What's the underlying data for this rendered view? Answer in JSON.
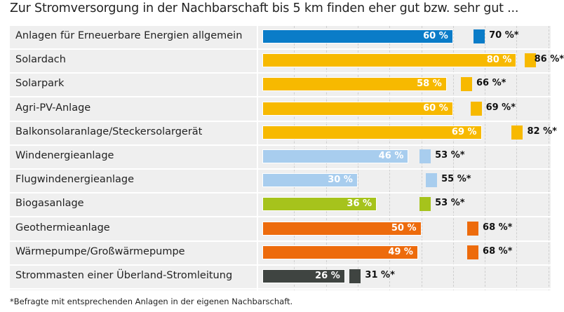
{
  "title": "Zur Stromversorgung in der Nachbarschaft bis 5 km finden eher gut bzw. sehr gut ...",
  "footnote": "*Befragte mit entsprechenden Anlagen in der eigenen Nachbarschaft.",
  "chart_data": {
    "type": "bar",
    "orientation": "horizontal",
    "xlim": [
      0,
      100
    ],
    "grid": true,
    "categories": [
      "Anlagen für Erneuerbare Energien allgemein",
      "Solardach",
      "Solarpark",
      "Agri-PV-Anlage",
      "Balkonsolaranlage/Steckersolargerät",
      "Windenergieanlage",
      "Flugwindenergieanlage",
      "Biogasanlage",
      "Geothermieanlage",
      "Wärmepumpe/Großwärmepumpe",
      "Strommasten einer Überland-Stromleitung"
    ],
    "series": [
      {
        "values": [
          60,
          80,
          58,
          60,
          69,
          46,
          30,
          36,
          50,
          49,
          26
        ],
        "labels": [
          "60 %",
          "80 %",
          "58 %",
          "60 %",
          "69 %",
          "46 %",
          "30 %",
          "36 %",
          "50 %",
          "49 %",
          "26 %"
        ]
      },
      {
        "values": [
          70,
          86,
          66,
          69,
          82,
          53,
          55,
          53,
          68,
          68,
          31
        ],
        "labels": [
          "70 %*",
          "86 %*",
          "66 %*",
          "69 %*",
          "82 %*",
          "53 %*",
          "55 %*",
          "53 %*",
          "68 %*",
          "68 %*",
          "31 %*"
        ]
      }
    ],
    "colors": [
      "#0a7cc8",
      "#f7b900",
      "#f7b900",
      "#f7b900",
      "#f7b900",
      "#a8cdee",
      "#a8cdee",
      "#a6c31c",
      "#ed6b0c",
      "#ed6b0c",
      "#3f4441"
    ]
  }
}
